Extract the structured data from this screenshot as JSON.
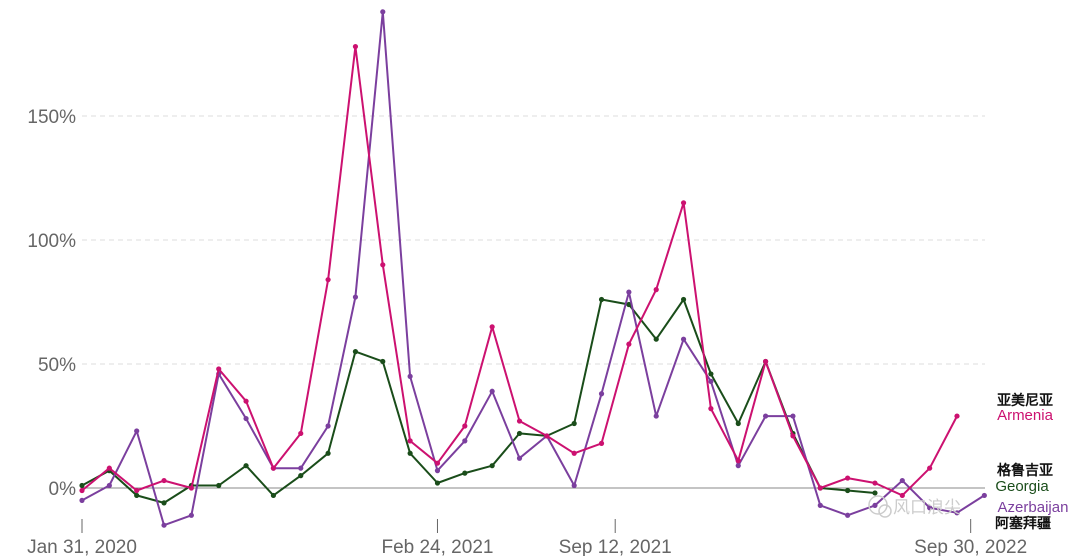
{
  "chart_data": {
    "type": "line",
    "title": "",
    "xlabel": "",
    "ylabel": "",
    "ylim": [
      -18,
      193
    ],
    "yticks": [
      {
        "value": 0,
        "label": "0%"
      },
      {
        "value": 50,
        "label": "50%"
      },
      {
        "value": 100,
        "label": "100%"
      },
      {
        "value": 150,
        "label": "150%"
      }
    ],
    "xticks": [
      {
        "index": 0,
        "label": "Jan 31, 2020"
      },
      {
        "index": 13,
        "label": "Feb 24, 2021"
      },
      {
        "index": 19.5,
        "label": "Sep 12, 2021"
      },
      {
        "index": 32.5,
        "label": "Sep 30, 2022"
      }
    ],
    "grid": true,
    "legend": "end-of-line labels",
    "series": [
      {
        "name": "Georgia",
        "name_cn": "格鲁吉亚",
        "color": "#1a4d1a",
        "values": [
          1,
          7,
          -3,
          -6,
          1,
          1,
          9,
          -3,
          5,
          14,
          55,
          51,
          14,
          2,
          6,
          9,
          22,
          21,
          26,
          76,
          74,
          60,
          76,
          46,
          26,
          51,
          22,
          0,
          -1,
          -2,
          null,
          null,
          null,
          null
        ]
      },
      {
        "name": "Azerbaijan",
        "name_cn": "阿塞拜疆",
        "color": "#7b3f9e",
        "values": [
          -5,
          1,
          23,
          -15,
          -11,
          46,
          28,
          8,
          8,
          25,
          77,
          192,
          45,
          7,
          19,
          39,
          12,
          21,
          1,
          38,
          79,
          29,
          60,
          43,
          9,
          29,
          29,
          -7,
          -11,
          -7,
          3,
          -8,
          -10,
          -3
        ]
      },
      {
        "name": "Armenia",
        "name_cn": "亚美尼亚",
        "color": "#cc1170",
        "values": [
          -1,
          8,
          -1,
          3,
          0,
          48,
          35,
          8,
          22,
          84,
          178,
          90,
          19,
          10,
          25,
          65,
          27,
          21,
          14,
          18,
          58,
          80,
          115,
          32,
          11,
          51,
          21,
          0,
          4,
          2,
          -3,
          8,
          29,
          null
        ]
      }
    ]
  },
  "watermark": "风口浪尖"
}
